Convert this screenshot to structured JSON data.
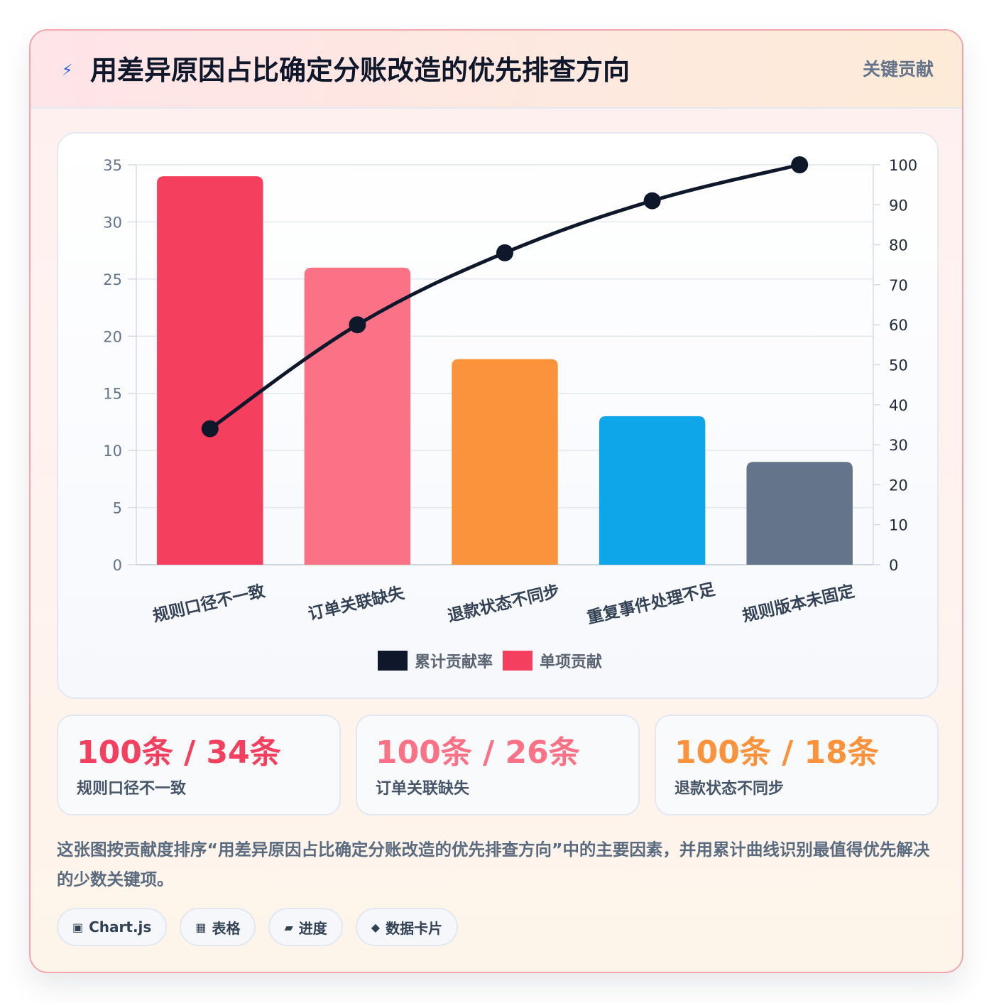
{
  "header": {
    "icon": "bolt-icon",
    "title": "用差异原因占比确定分账改造的优先排查方向",
    "badge": "关键贡献"
  },
  "chart_data": {
    "type": "bar",
    "categories": [
      "规则口径不一致",
      "订单关联缺失",
      "退款状态不同步",
      "重复事件处理不足",
      "规则版本未固定"
    ],
    "series": [
      {
        "name": "单项贡献",
        "type": "bar",
        "axis": "left",
        "values": [
          34,
          26,
          18,
          13,
          9
        ],
        "colors": [
          "#f43f5e",
          "#fb7185",
          "#fb923c",
          "#0ea5e9",
          "#64748b"
        ]
      },
      {
        "name": "累计贡献率",
        "type": "line",
        "axis": "right",
        "values": [
          34,
          60,
          78,
          91,
          100
        ],
        "color": "#0f172a"
      }
    ],
    "ylim_left": [
      0,
      35
    ],
    "yticks_left": [
      0,
      5,
      10,
      15,
      20,
      25,
      30,
      35
    ],
    "ylim_right": [
      0,
      100
    ],
    "yticks_right": [
      0,
      10,
      20,
      30,
      40,
      50,
      60,
      70,
      80,
      90,
      100
    ],
    "grid": true,
    "legend_position": "bottom"
  },
  "legend": [
    {
      "label": "累计贡献率",
      "color": "#0f172a"
    },
    {
      "label": "单项贡献",
      "color": "#f43f5e"
    }
  ],
  "stats": [
    {
      "value": "100条 / 34条",
      "label": "规则口径不一致",
      "color": "#f43f5e"
    },
    {
      "value": "100条 / 26条",
      "label": "订单关联缺失",
      "color": "#fb7185"
    },
    {
      "value": "100条 / 18条",
      "label": "退款状态不同步",
      "color": "#fb923c"
    }
  ],
  "description": "这张图按贡献度排序“用差异原因占比确定分账改造的优先排查方向”中的主要因素，并用累计曲线识别最值得优先解决的少数关键项。",
  "chips": [
    {
      "icon": "chart-icon",
      "glyph": "▣",
      "label": "Chart.js"
    },
    {
      "icon": "table-icon",
      "glyph": "▦",
      "label": "表格"
    },
    {
      "icon": "progress-icon",
      "glyph": "▰",
      "label": "进度"
    },
    {
      "icon": "card-icon",
      "glyph": "◆",
      "label": "数据卡片"
    }
  ]
}
